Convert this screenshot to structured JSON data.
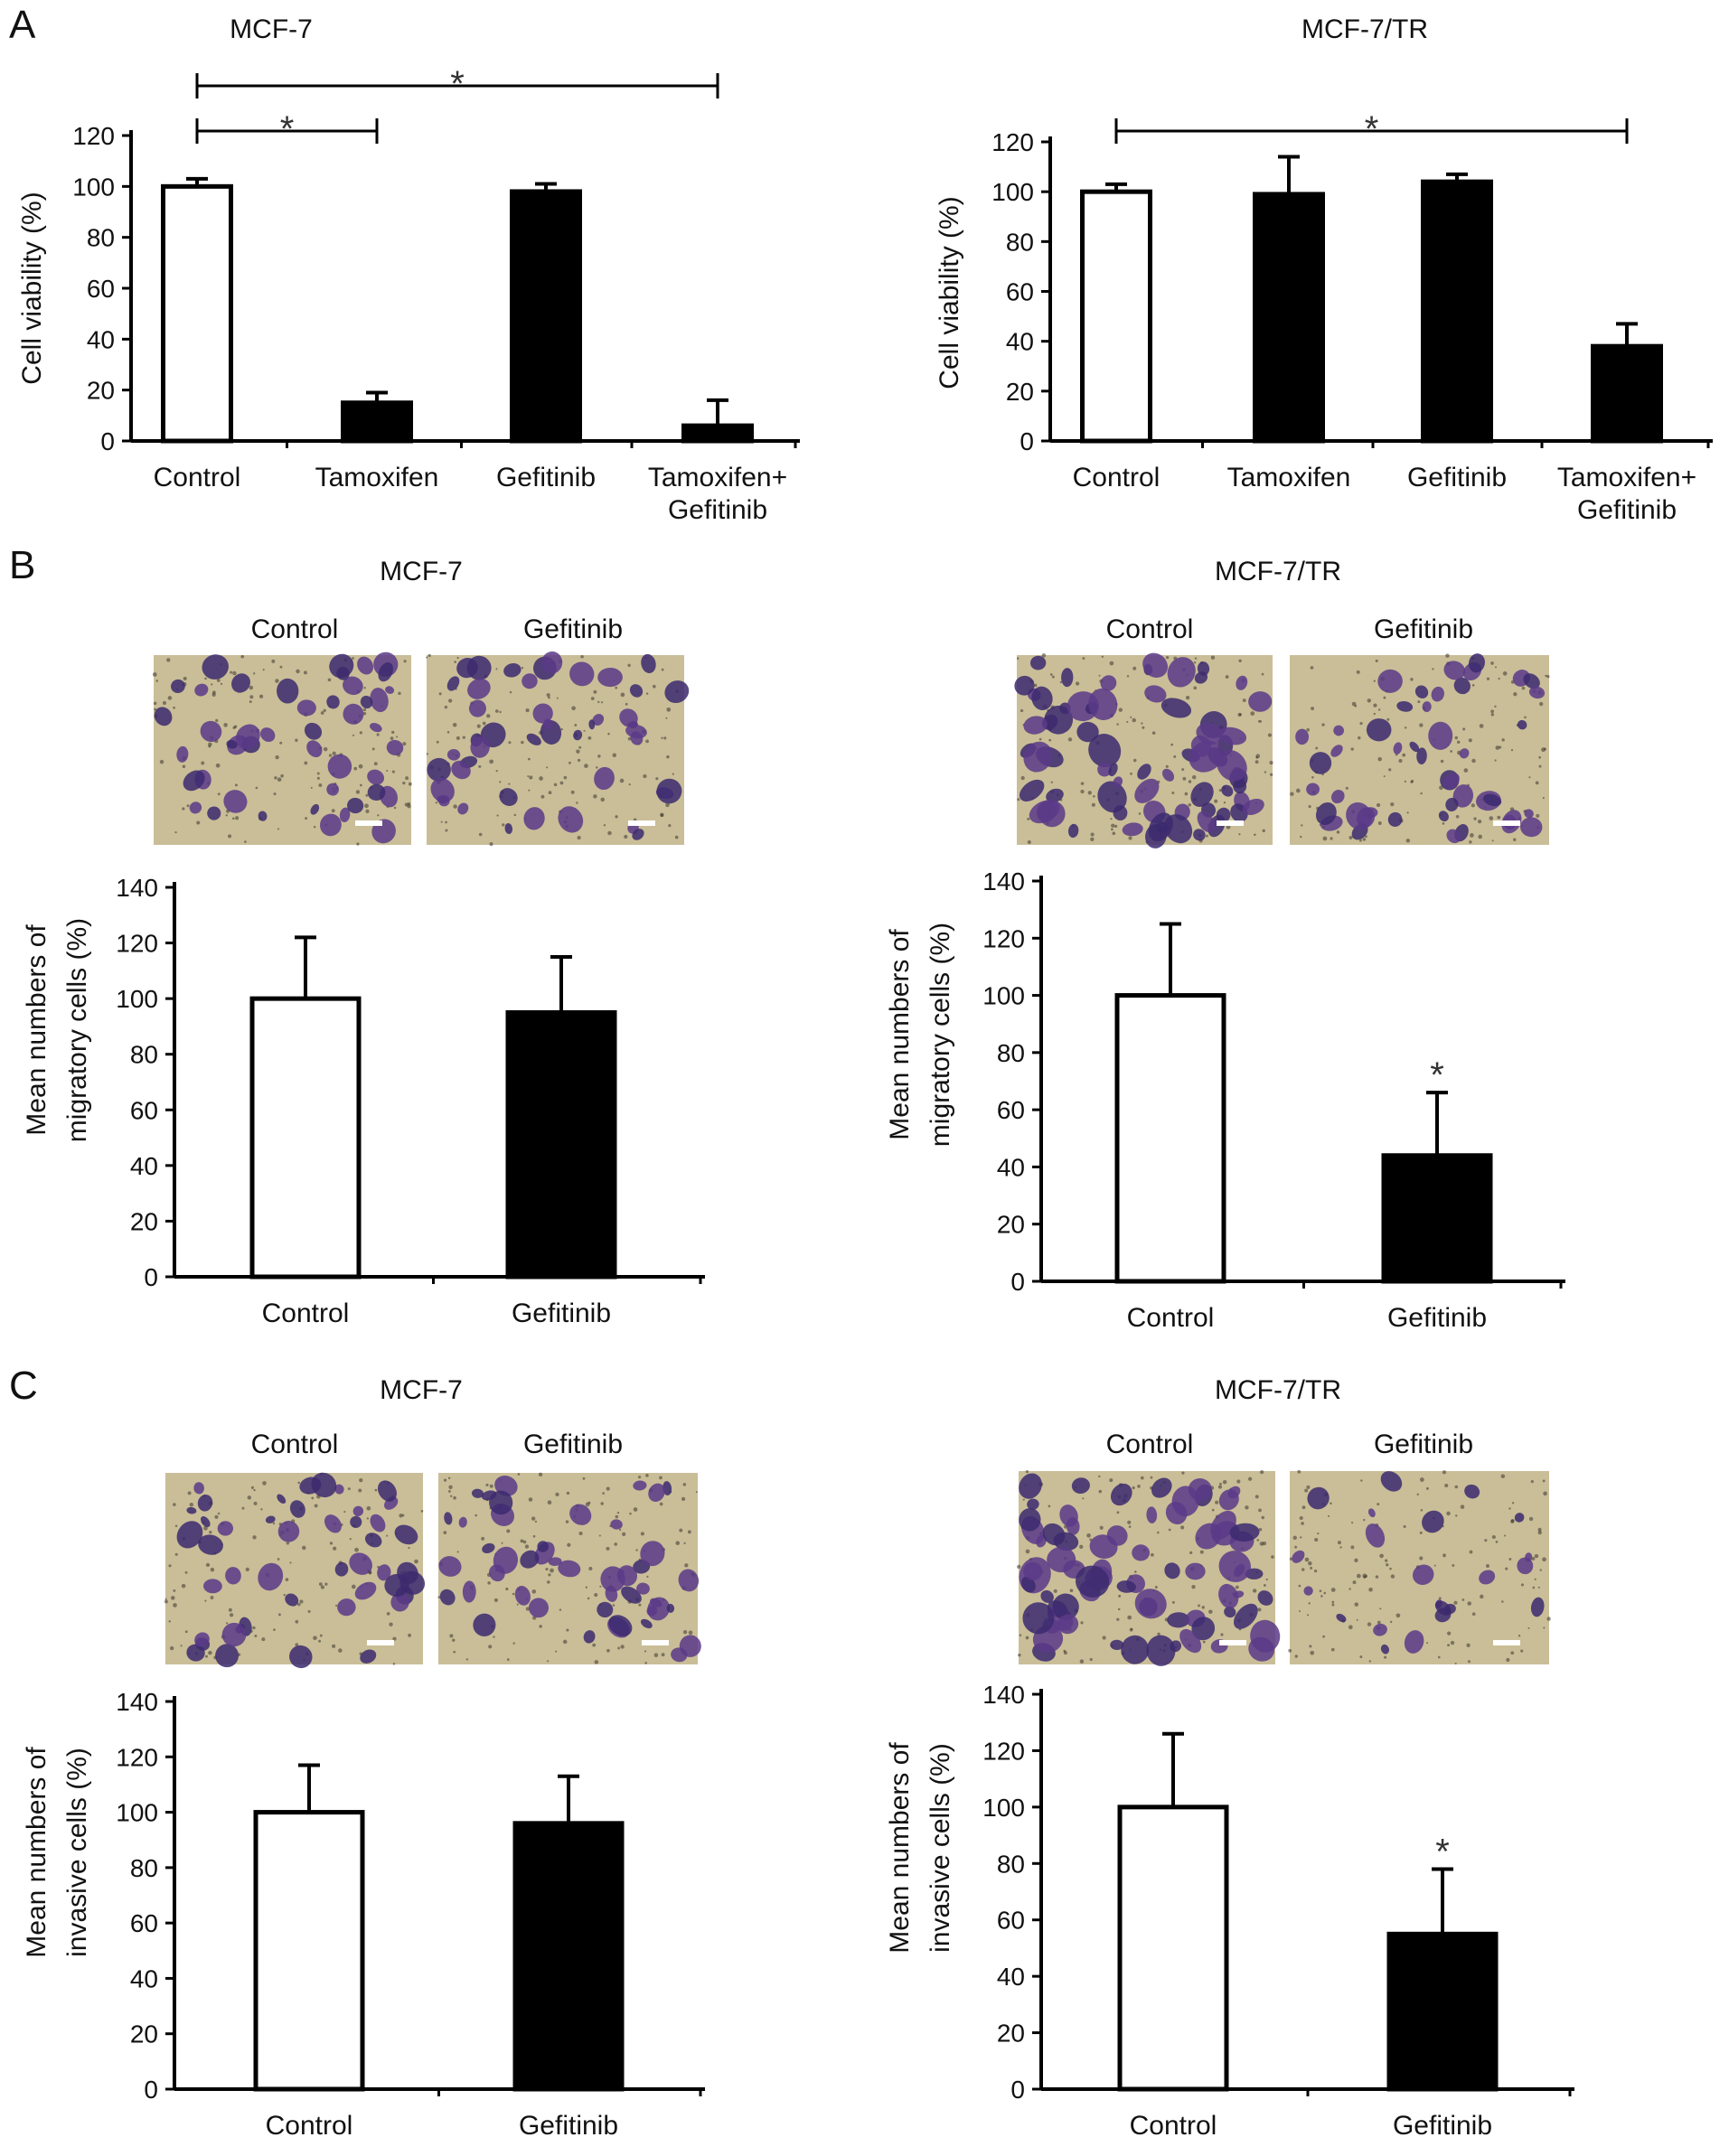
{
  "figure": {
    "colors": {
      "control_bar": "#ffffff",
      "treated_bar": "#000000",
      "micrograph_bg": "#c9be97",
      "stain": "#3c2a6e"
    },
    "panels": [
      {
        "id": "A",
        "label": "A",
        "charts": [
          {
            "title": "MCF-7",
            "ylabel_lines": [
              "Cell viability (%)"
            ],
            "categories": [
              "Control",
              "Tamoxifen",
              "Gefitinib",
              "Tamoxifen+\nGefitinib"
            ],
            "cat_lines": [
              [
                "Control"
              ],
              [
                "Tamoxifen"
              ],
              [
                "Gefitinib"
              ],
              [
                "Tamoxifen+",
                "Gefitinib"
              ]
            ],
            "values": [
              100,
              15,
              98,
              6
            ],
            "errors": [
              3,
              4,
              3,
              10
            ],
            "fills": [
              "#ffffff",
              "#000000",
              "#000000",
              "#000000"
            ],
            "yticks": [
              "0",
              "20",
              "40",
              "60",
              "80",
              "100",
              "120"
            ],
            "sig_brackets": [
              {
                "from": 0,
                "to": 1,
                "mark": "*"
              },
              {
                "from": 0,
                "to": 3,
                "mark": "*"
              }
            ],
            "star_marks": []
          },
          {
            "title": "MCF-7/TR",
            "ylabel_lines": [
              "Cell viability (%)"
            ],
            "categories": [
              "Control",
              "Tamoxifen",
              "Gefitinib",
              "Tamoxifen+\nGefitinib"
            ],
            "cat_lines": [
              [
                "Control"
              ],
              [
                "Tamoxifen"
              ],
              [
                "Gefitinib"
              ],
              [
                "Tamoxifen+",
                "Gefitinib"
              ]
            ],
            "values": [
              100,
              99,
              104,
              38
            ],
            "errors": [
              3,
              15,
              3,
              9
            ],
            "fills": [
              "#ffffff",
              "#000000",
              "#000000",
              "#000000"
            ],
            "yticks": [
              "0",
              "20",
              "40",
              "60",
              "80",
              "100",
              "120"
            ],
            "sig_brackets": [
              {
                "from": 0,
                "to": 3,
                "mark": "*"
              }
            ],
            "star_marks": []
          }
        ]
      },
      {
        "id": "B",
        "label": "B",
        "charts": [
          {
            "title": "MCF-7",
            "image_labels": [
              "Control",
              "Gefitinib"
            ],
            "ylabel_lines": [
              "Mean numbers of",
              "migratory cells (%)"
            ],
            "categories": [
              "Control",
              "Gefitinib"
            ],
            "cat_lines": [
              [
                "Control"
              ],
              [
                "Gefitinib"
              ]
            ],
            "values": [
              100,
              95
            ],
            "errors": [
              22,
              20
            ],
            "fills": [
              "#ffffff",
              "#000000"
            ],
            "yticks": [
              "0",
              "20",
              "40",
              "60",
              "80",
              "100",
              "120",
              "140"
            ],
            "sig_brackets": [],
            "star_marks": []
          },
          {
            "title": "MCF-7/TR",
            "image_labels": [
              "Control",
              "Gefitinib"
            ],
            "ylabel_lines": [
              "Mean numbers of",
              "migratory cells (%)"
            ],
            "categories": [
              "Control",
              "Gefitinib"
            ],
            "cat_lines": [
              [
                "Control"
              ],
              [
                "Gefitinib"
              ]
            ],
            "values": [
              100,
              44
            ],
            "errors": [
              25,
              22
            ],
            "fills": [
              "#ffffff",
              "#000000"
            ],
            "yticks": [
              "0",
              "20",
              "40",
              "60",
              "80",
              "100",
              "120",
              "140"
            ],
            "sig_brackets": [],
            "star_marks": [
              "",
              "*"
            ]
          }
        ]
      },
      {
        "id": "C",
        "label": "C",
        "charts": [
          {
            "title": "MCF-7",
            "image_labels": [
              "Control",
              "Gefitinib"
            ],
            "ylabel_lines": [
              "Mean numbers of",
              "invasive cells (%)"
            ],
            "categories": [
              "Control",
              "Gefitinib"
            ],
            "cat_lines": [
              [
                "Control"
              ],
              [
                "Gefitinib"
              ]
            ],
            "values": [
              100,
              96
            ],
            "errors": [
              17,
              17
            ],
            "fills": [
              "#ffffff",
              "#000000"
            ],
            "yticks": [
              "0",
              "20",
              "40",
              "60",
              "80",
              "100",
              "120",
              "140"
            ],
            "sig_brackets": [],
            "star_marks": []
          },
          {
            "title": "MCF-7/TR",
            "image_labels": [
              "Control",
              "Gefitinib"
            ],
            "ylabel_lines": [
              "Mean numbers of",
              "invasive cells (%)"
            ],
            "categories": [
              "Control",
              "Gefitinib"
            ],
            "cat_lines": [
              [
                "Control"
              ],
              [
                "Gefitinib"
              ]
            ],
            "values": [
              100,
              55
            ],
            "errors": [
              26,
              23
            ],
            "fills": [
              "#ffffff",
              "#000000"
            ],
            "yticks": [
              "0",
              "20",
              "40",
              "60",
              "80",
              "100",
              "120",
              "140"
            ],
            "sig_brackets": [],
            "star_marks": [
              "",
              "*"
            ]
          }
        ]
      }
    ]
  },
  "chart_data": [
    {
      "type": "bar",
      "title": "MCF-7",
      "categories": [
        "Control",
        "Tamoxifen",
        "Gefitinib",
        "Tamoxifen+\nGefitinib"
      ],
      "values": [
        100,
        15,
        98,
        6
      ],
      "errors": [
        3,
        4,
        3,
        10
      ],
      "xlabel": "",
      "ylabel": "Cell viability (%)",
      "ylim": [
        0,
        120
      ],
      "significance": [
        "Control vs Tamoxifen: *",
        "Control vs Tamoxifen+Gefitinib: *"
      ]
    },
    {
      "type": "bar",
      "title": "MCF-7/TR",
      "categories": [
        "Control",
        "Tamoxifen",
        "Gefitinib",
        "Tamoxifen+\nGefitinib"
      ],
      "values": [
        100,
        99,
        104,
        38
      ],
      "errors": [
        3,
        15,
        3,
        9
      ],
      "xlabel": "",
      "ylabel": "Cell viability (%)",
      "ylim": [
        0,
        120
      ],
      "significance": [
        "Control vs Tamoxifen+Gefitinib: *"
      ]
    },
    {
      "type": "bar",
      "title": "MCF-7",
      "categories": [
        "Control",
        "Gefitinib"
      ],
      "values": [
        100,
        95
      ],
      "errors": [
        22,
        20
      ],
      "xlabel": "",
      "ylabel": "Mean numbers of migratory cells (%)",
      "ylim": [
        0,
        140
      ]
    },
    {
      "type": "bar",
      "title": "MCF-7/TR",
      "categories": [
        "Control",
        "Gefitinib"
      ],
      "values": [
        100,
        44
      ],
      "errors": [
        25,
        22
      ],
      "xlabel": "",
      "ylabel": "Mean numbers of migratory cells (%)",
      "ylim": [
        0,
        140
      ],
      "significance": [
        "Gefitinib: *"
      ]
    },
    {
      "type": "bar",
      "title": "MCF-7",
      "categories": [
        "Control",
        "Gefitinib"
      ],
      "values": [
        100,
        96
      ],
      "errors": [
        17,
        17
      ],
      "xlabel": "",
      "ylabel": "Mean numbers of invasive cells (%)",
      "ylim": [
        0,
        140
      ]
    },
    {
      "type": "bar",
      "title": "MCF-7/TR",
      "categories": [
        "Control",
        "Gefitinib"
      ],
      "values": [
        100,
        55
      ],
      "errors": [
        26,
        23
      ],
      "xlabel": "",
      "ylabel": "Mean numbers of invasive cells (%)",
      "ylim": [
        0,
        140
      ],
      "significance": [
        "Gefitinib: *"
      ]
    }
  ]
}
